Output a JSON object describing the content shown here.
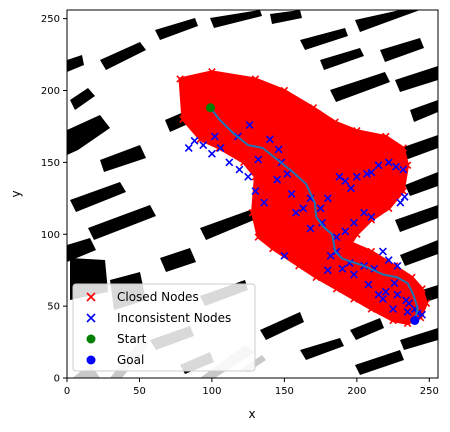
{
  "chart_data": {
    "type": "scatter",
    "xlabel": "x",
    "ylabel": "y",
    "xlim": [
      0,
      256
    ],
    "ylim": [
      0,
      256
    ],
    "x_ticks": [
      "0",
      "50",
      "100",
      "150",
      "200",
      "250"
    ],
    "y_ticks": [
      "0",
      "50",
      "100",
      "150",
      "200",
      "250"
    ],
    "x_tick_values": [
      0,
      50,
      100,
      150,
      200,
      250
    ],
    "y_tick_values": [
      0,
      50,
      100,
      150,
      200,
      250
    ],
    "legend_position": "lower-left",
    "background_map": "black building footprints on white, grey roads in lower-left",
    "series": [
      {
        "name": "Closed Nodes",
        "marker": "x",
        "color": "#ff0000",
        "region_outline": [
          [
            78,
            208
          ],
          [
            100,
            213
          ],
          [
            130,
            208
          ],
          [
            150,
            200
          ],
          [
            170,
            188
          ],
          [
            185,
            178
          ],
          [
            200,
            172
          ],
          [
            220,
            168
          ],
          [
            232,
            160
          ],
          [
            235,
            148
          ],
          [
            232,
            130
          ],
          [
            222,
            118
          ],
          [
            210,
            110
          ],
          [
            200,
            100
          ],
          [
            196,
            94
          ],
          [
            210,
            88
          ],
          [
            226,
            78
          ],
          [
            238,
            70
          ],
          [
            245,
            62
          ],
          [
            248,
            52
          ],
          [
            244,
            42
          ],
          [
            235,
            38
          ],
          [
            225,
            40
          ],
          [
            210,
            48
          ],
          [
            198,
            55
          ],
          [
            186,
            62
          ],
          [
            172,
            70
          ],
          [
            160,
            78
          ],
          [
            142,
            90
          ],
          [
            132,
            98
          ],
          [
            128,
            115
          ],
          [
            130,
            140
          ],
          [
            122,
            150
          ],
          [
            105,
            160
          ],
          [
            92,
            166
          ],
          [
            80,
            180
          ]
        ]
      },
      {
        "name": "Inconsistent Nodes",
        "marker": "x",
        "color": "#0000ff",
        "points": [
          [
            88,
            165
          ],
          [
            94,
            162
          ],
          [
            100,
            156
          ],
          [
            106,
            160
          ],
          [
            118,
            168
          ],
          [
            126,
            176
          ],
          [
            112,
            150
          ],
          [
            119,
            145
          ],
          [
            125,
            140
          ],
          [
            140,
            166
          ],
          [
            146,
            159
          ],
          [
            148,
            150
          ],
          [
            152,
            142
          ],
          [
            155,
            128
          ],
          [
            158,
            115
          ],
          [
            163,
            118
          ],
          [
            168,
            125
          ],
          [
            175,
            118
          ],
          [
            180,
            125
          ],
          [
            188,
            140
          ],
          [
            192,
            137
          ],
          [
            196,
            132
          ],
          [
            200,
            140
          ],
          [
            207,
            142
          ],
          [
            210,
            143
          ],
          [
            222,
            150
          ],
          [
            227,
            147
          ],
          [
            232,
            145
          ],
          [
            215,
            148
          ],
          [
            230,
            122
          ],
          [
            233,
            126
          ],
          [
            205,
            115
          ],
          [
            210,
            112
          ],
          [
            198,
            108
          ],
          [
            192,
            102
          ],
          [
            186,
            98
          ],
          [
            176,
            108
          ],
          [
            168,
            104
          ],
          [
            186,
            88
          ],
          [
            182,
            85
          ],
          [
            190,
            76
          ],
          [
            180,
            75
          ],
          [
            198,
            72
          ],
          [
            205,
            78
          ],
          [
            212,
            76
          ],
          [
            218,
            88
          ],
          [
            222,
            82
          ],
          [
            228,
            78
          ],
          [
            226,
            66
          ],
          [
            220,
            60
          ],
          [
            218,
            55
          ],
          [
            228,
            58
          ],
          [
            234,
            54
          ],
          [
            236,
            52
          ],
          [
            240,
            48
          ],
          [
            242,
            45
          ],
          [
            245,
            44
          ],
          [
            235,
            46
          ],
          [
            225,
            48
          ],
          [
            215,
            58
          ],
          [
            208,
            65
          ],
          [
            195,
            80
          ],
          [
            150,
            85
          ],
          [
            130,
            130
          ],
          [
            136,
            122
          ],
          [
            145,
            138
          ],
          [
            132,
            152
          ],
          [
            102,
            168
          ],
          [
            84,
            160
          ]
        ]
      },
      {
        "name": "Start",
        "marker": "o",
        "color": "#008000",
        "points": [
          [
            99,
            188
          ]
        ]
      },
      {
        "name": "Goal",
        "marker": "o",
        "color": "#0000ff",
        "points": [
          [
            240,
            40
          ]
        ]
      },
      {
        "name": "",
        "type": "line",
        "color": "#1f77b4",
        "points": [
          [
            99,
            188
          ],
          [
            105,
            180
          ],
          [
            115,
            170
          ],
          [
            125,
            162
          ],
          [
            135,
            160
          ],
          [
            145,
            152
          ],
          [
            155,
            144
          ],
          [
            165,
            135
          ],
          [
            171,
            122
          ],
          [
            172,
            112
          ],
          [
            177,
            105
          ],
          [
            183,
            100
          ],
          [
            185,
            88
          ],
          [
            190,
            83
          ],
          [
            205,
            78
          ],
          [
            218,
            72
          ],
          [
            228,
            70
          ],
          [
            235,
            66
          ],
          [
            238,
            60
          ],
          [
            240,
            55
          ],
          [
            242,
            48
          ],
          [
            240,
            40
          ]
        ]
      }
    ],
    "legend": [
      {
        "label": "Closed Nodes",
        "marker": "x",
        "color": "#ff0000"
      },
      {
        "label": "Inconsistent Nodes",
        "marker": "x",
        "color": "#0000ff"
      },
      {
        "label": "Start",
        "marker": "o",
        "color": "#008000"
      },
      {
        "label": "Goal",
        "marker": "o",
        "color": "#0000ff"
      }
    ]
  }
}
